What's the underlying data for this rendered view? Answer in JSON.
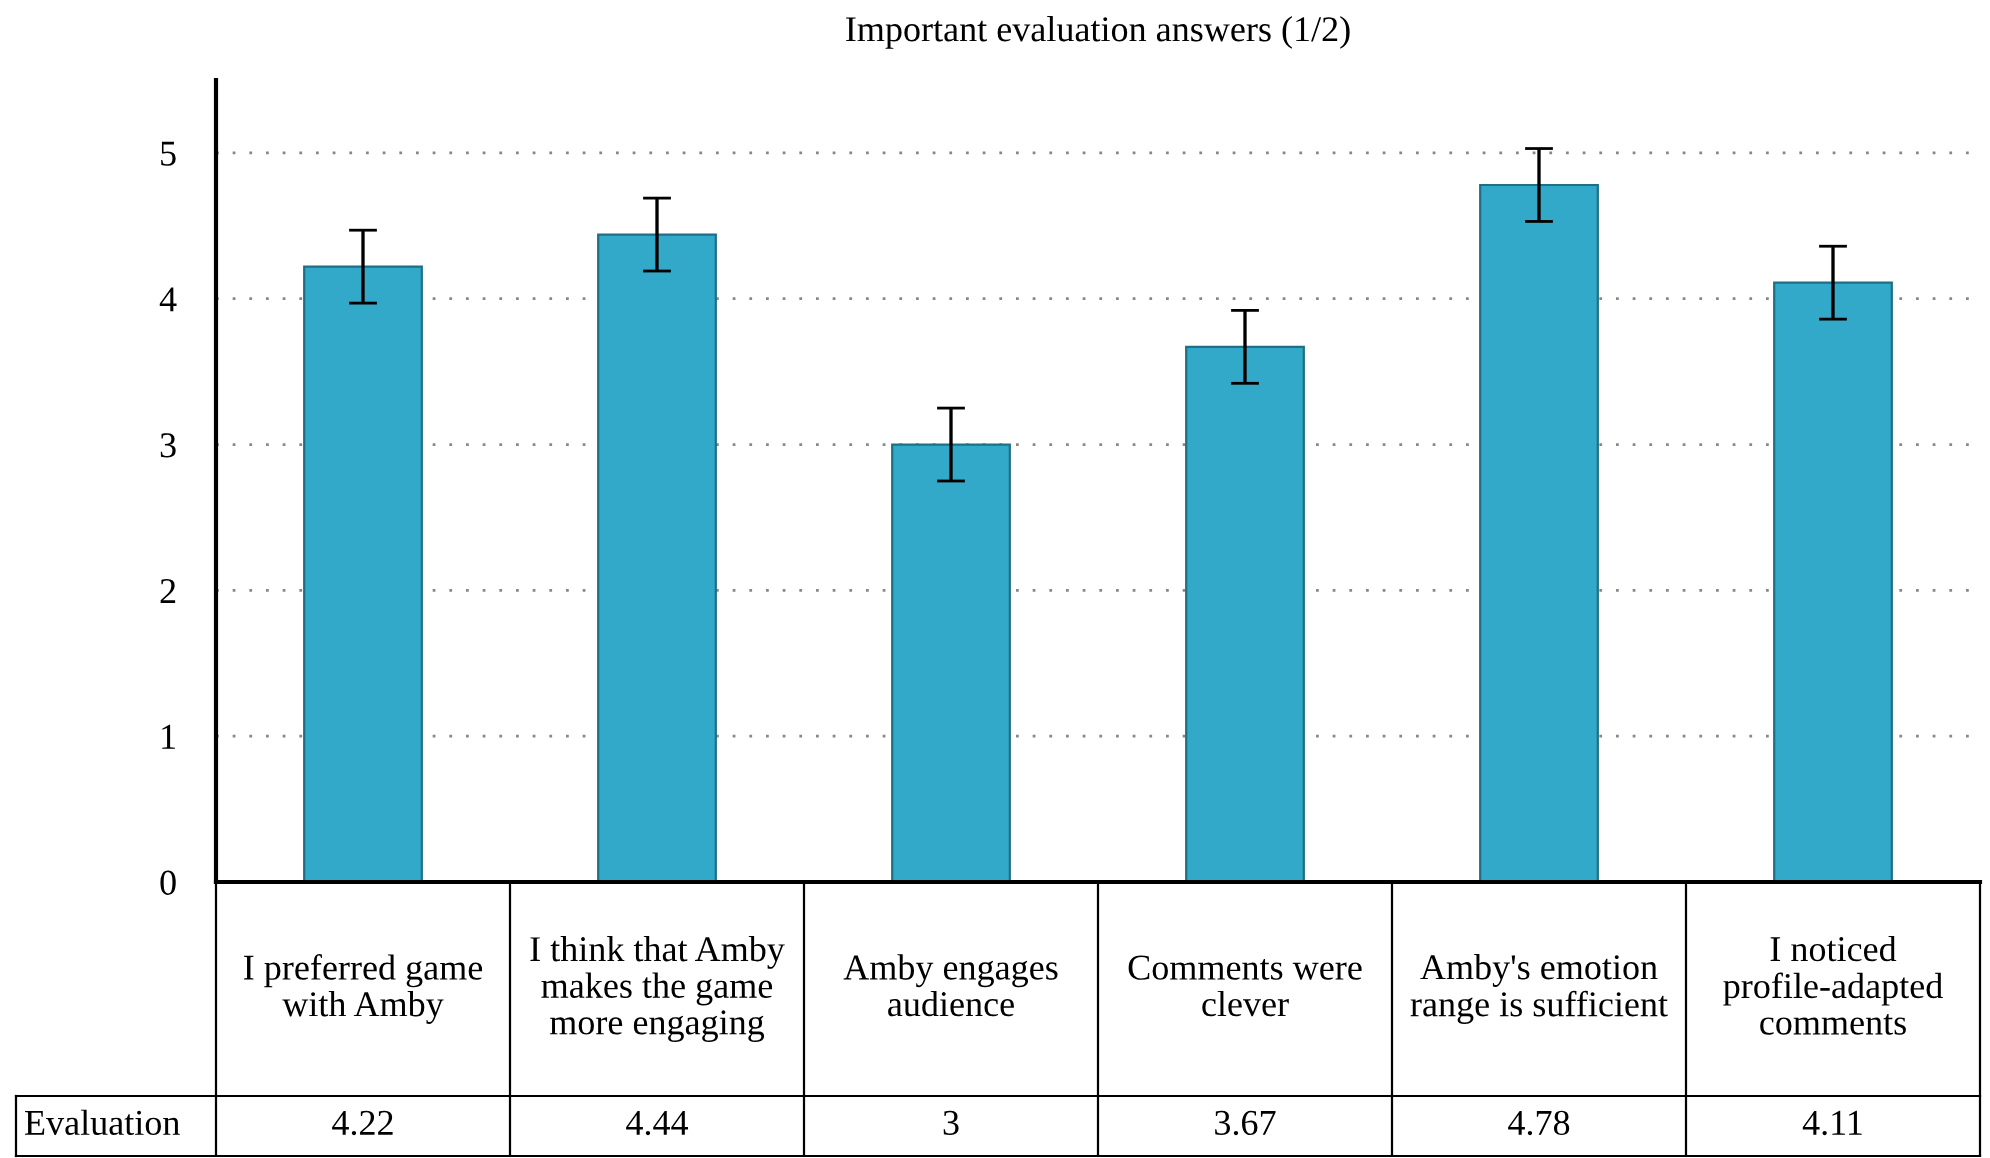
{
  "chart_data": {
    "type": "bar",
    "title": "Important evaluation answers (1/2)",
    "categories": [
      "I preferred game with Amby",
      "I think that Amby makes the game more engaging",
      "Amby engages audience",
      "Comments were clever",
      "Amby's emotion range is sufficient",
      "I noticed profile-adapted comments"
    ],
    "series": [
      {
        "name": "Evaluation",
        "color": "#33a9c9",
        "values": [
          4.22,
          4.44,
          3,
          3.67,
          4.78,
          4.11
        ],
        "errors": [
          0.25,
          0.25,
          0.25,
          0.25,
          0.25,
          0.25
        ]
      }
    ],
    "ylim": [
      0,
      5.5
    ],
    "yticks": [
      0,
      1,
      2,
      3,
      4,
      5
    ],
    "grid": "y",
    "data_labels": true
  }
}
